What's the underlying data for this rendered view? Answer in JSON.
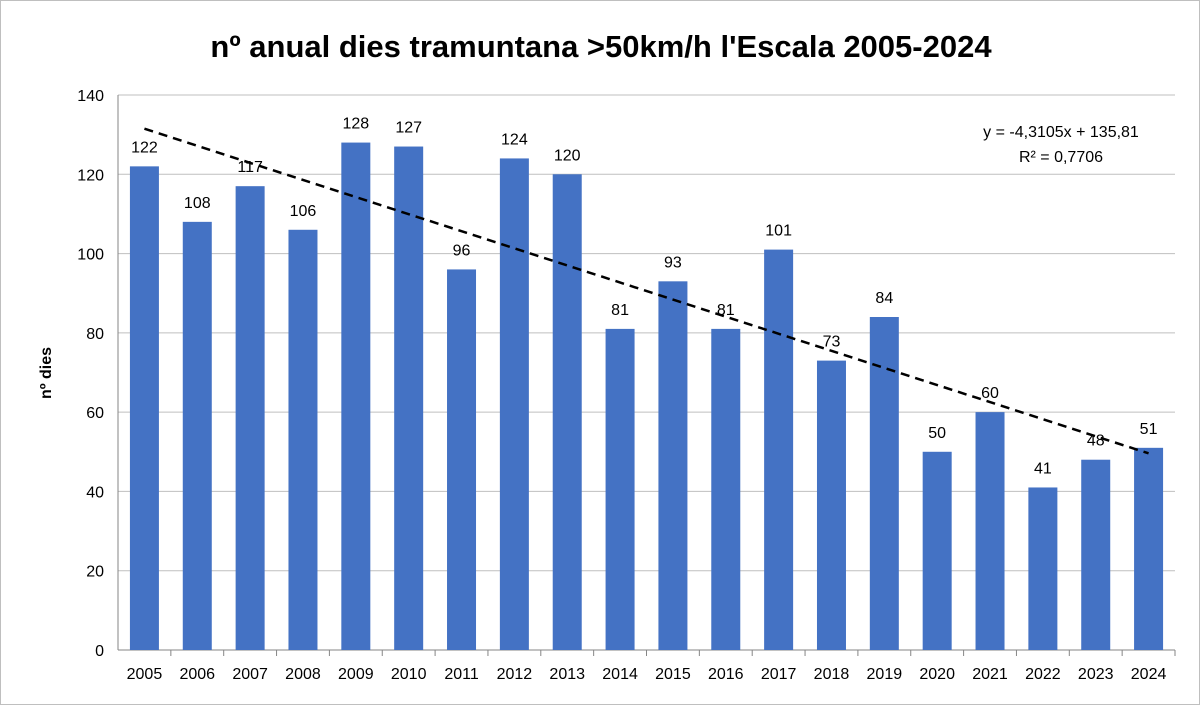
{
  "chart_data": {
    "type": "bar",
    "title": "nº anual dies tramuntana >50km/h l'Escala 2005-2024",
    "xlabel": "",
    "ylabel": "nº dies",
    "ylim": [
      0,
      140
    ],
    "yticks": [
      0,
      20,
      40,
      60,
      80,
      100,
      120,
      140
    ],
    "grid": true,
    "legend": "none",
    "categories": [
      "2005",
      "2006",
      "2007",
      "2008",
      "2009",
      "2010",
      "2011",
      "2012",
      "2013",
      "2014",
      "2015",
      "2016",
      "2017",
      "2018",
      "2019",
      "2020",
      "2021",
      "2022",
      "2023",
      "2024"
    ],
    "values": [
      122,
      108,
      117,
      106,
      128,
      127,
      96,
      124,
      120,
      81,
      93,
      81,
      101,
      73,
      84,
      50,
      60,
      41,
      48,
      51
    ],
    "bar_color": "#4472C4",
    "trendline": {
      "type": "linear",
      "slope": -4.3105,
      "intercept": 135.81,
      "style": "dashed",
      "color": "#000000",
      "equation_label": "y = -4,3105x + 135,81",
      "r2_label": "R² = 0,7706"
    }
  }
}
